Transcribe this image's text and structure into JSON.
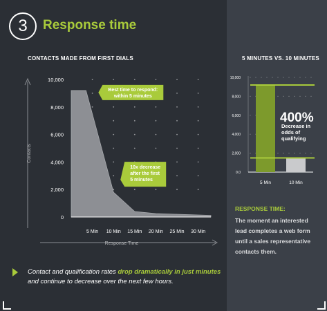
{
  "header": {
    "step_number": "3",
    "title": "Response time"
  },
  "colors": {
    "accent": "#a9cb3b",
    "background": "#2b2f35",
    "right_panel": "#3b4048",
    "area_fill": "#8d8f94",
    "grey_bar": "#c9cacc"
  },
  "chart_data": [
    {
      "type": "area",
      "title": "CONTACTS MADE FROM FIRST DIALS",
      "xlabel": "Response Time",
      "ylabel": "Contacts",
      "ylim": [
        0,
        10000
      ],
      "yticks": [
        "10,000",
        "8,000",
        "6,000",
        "4,000",
        "2,000",
        "0"
      ],
      "ytick_values": [
        10000,
        8000,
        6000,
        4000,
        2000,
        0
      ],
      "xticks": [
        "5 Min",
        "10 Min",
        "15 Min",
        "20 Min",
        "25 Min",
        "30 Min"
      ],
      "xtick_values": [
        5,
        10,
        15,
        20,
        25,
        30
      ],
      "xlim": [
        0,
        33
      ],
      "x": [
        0,
        3.5,
        10,
        15,
        20,
        25,
        30,
        33
      ],
      "y": [
        9200,
        9200,
        1800,
        400,
        250,
        200,
        150,
        120
      ],
      "grid": "dots",
      "annotations": [
        {
          "text": [
            "Best time to respond:",
            "within 5 minutes"
          ],
          "x": 2.5,
          "y": 9200
        },
        {
          "text": [
            "10x decrease",
            "after the first",
            "5 minutes"
          ],
          "x": 10,
          "y": 1800
        }
      ]
    },
    {
      "type": "bar",
      "title": "5 MINUTES VS. 10 MINUTES",
      "categories": [
        "5 Min",
        "10 Min"
      ],
      "values": [
        9200,
        1500
      ],
      "ylim": [
        0,
        10000
      ],
      "yticks": [
        "10,000",
        "8,000",
        "6,000",
        "4,000",
        "2,000",
        "0.0"
      ],
      "ytick_values": [
        10000,
        8000,
        6000,
        4000,
        2000,
        0
      ],
      "annotation": {
        "value": "400%",
        "lines": [
          "Decrease in",
          "odds of",
          "qualifying"
        ]
      }
    }
  ],
  "response_time": {
    "heading": "RESPONSE TIME:",
    "body": "The moment an interested lead completes a web form until a sales representative contacts them."
  },
  "footer": {
    "part1": "Contact and qualification rates ",
    "highlight": "drop dramatically in just minutes",
    "part2": " and continue to decrease over the next few hours."
  }
}
